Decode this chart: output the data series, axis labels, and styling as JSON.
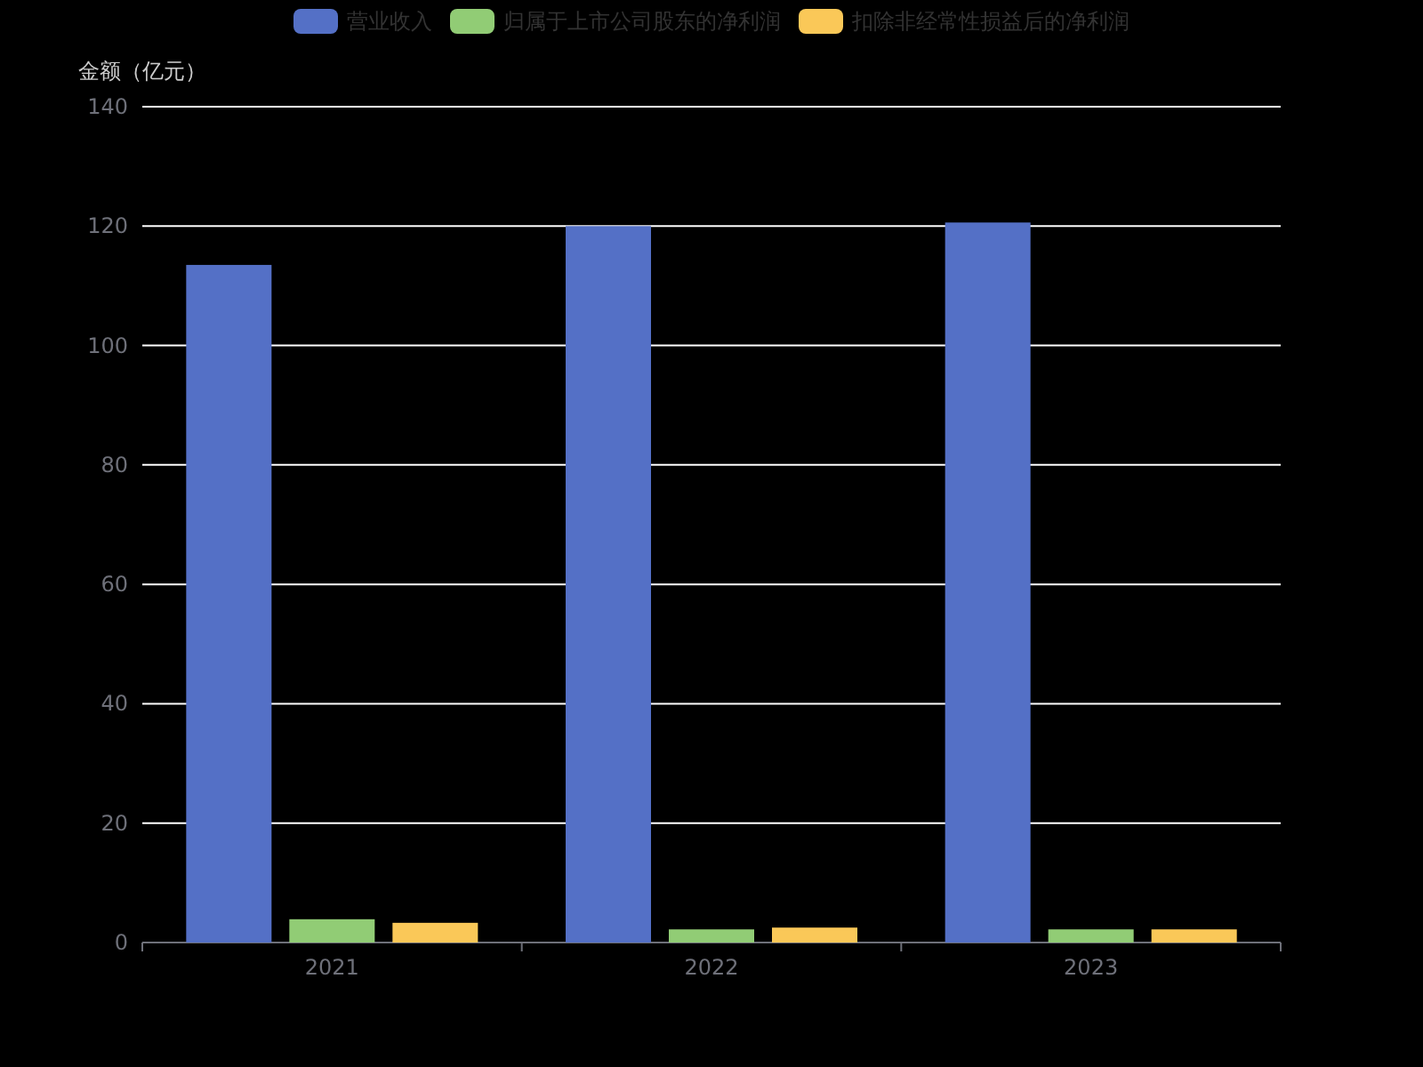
{
  "chart_data": {
    "type": "bar",
    "ylabel": "金额（亿元）",
    "categories": [
      "2021",
      "2022",
      "2023"
    ],
    "series": [
      {
        "name": "营业收入",
        "color": "#5470c6",
        "values": [
          113.5,
          120.0,
          120.6
        ]
      },
      {
        "name": "归属于上市公司股东的净利润",
        "color": "#91cc75",
        "values": [
          3.9,
          2.2,
          2.2
        ]
      },
      {
        "name": "扣除非经常性损益后的净利润",
        "color": "#fac858",
        "values": [
          3.3,
          2.5,
          2.2
        ]
      }
    ],
    "ylim": [
      0,
      140
    ],
    "yticks": [
      0,
      20,
      40,
      60,
      80,
      100,
      120,
      140
    ],
    "grid": "y",
    "legend": "top"
  }
}
